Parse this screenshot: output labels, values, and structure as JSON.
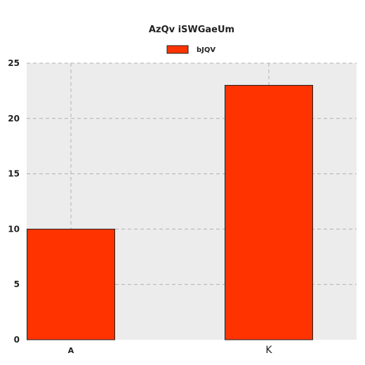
{
  "chart_data": {
    "type": "bar",
    "title": "AzQv iSWGaeUm",
    "categories": [
      "A",
      "K"
    ],
    "series": [
      {
        "name": "bJQV",
        "values": [
          10,
          23
        ],
        "color": "#ff3300"
      }
    ],
    "xlabel": "",
    "ylabel": "",
    "ylim": [
      0,
      25
    ],
    "yticks": [
      0,
      5,
      10,
      15,
      20,
      25
    ],
    "grid": true,
    "legend_position": "top-center",
    "plot_background": "#ececec",
    "grid_color": "#b0b0b0"
  }
}
